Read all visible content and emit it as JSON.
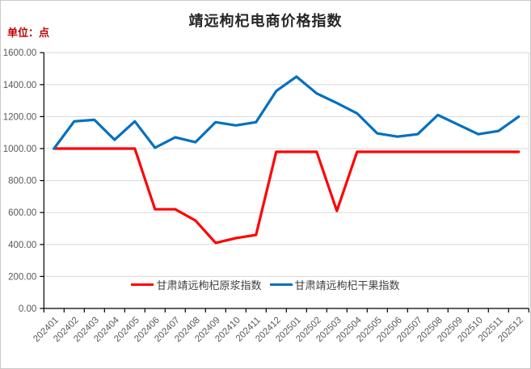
{
  "chart": {
    "unit_label": "单位：点",
    "colors": {
      "unit_label_text": "#c00000",
      "title_text": "#262626",
      "axis_text": "#595959",
      "legend_text": "#404040",
      "gridline": "#d9d9d9",
      "axis_line": "#000000",
      "raw_pulp_line": "#ff0000",
      "dried_fruit_line": "#0070c0"
    }
  },
  "chart_data": {
    "type": "line",
    "title": "靖远枸杞电商价格指数",
    "xlabel": "",
    "ylabel": "单位：点",
    "ylim": [
      0,
      1600
    ],
    "ytick_step": 200,
    "ytick_labels": [
      "0.00",
      "200.00",
      "400.00",
      "600.00",
      "800.00",
      "1000.00",
      "1200.00",
      "1400.00",
      "1600.00"
    ],
    "grid": true,
    "legend_position": "bottom-center",
    "categories": [
      "202401",
      "202402",
      "202403",
      "202404",
      "202405",
      "202406",
      "202407",
      "202408",
      "202409",
      "202410",
      "202411",
      "202412",
      "202501",
      "202502",
      "202503",
      "202504",
      "202505",
      "202506",
      "202507",
      "202508",
      "202509",
      "202510",
      "202511",
      "202512"
    ],
    "series": [
      {
        "name": "甘肃靖远枸杞原浆指数",
        "color": "#ff0000",
        "values": [
          1000,
          1000,
          1000,
          1000,
          1000,
          620,
          620,
          550,
          410,
          440,
          460,
          980,
          980,
          980,
          610,
          980,
          980,
          980,
          980,
          980,
          980,
          980,
          980,
          980
        ]
      },
      {
        "name": "甘肃靖远枸杞干果指数",
        "color": "#0070c0",
        "values": [
          1000,
          1170,
          1180,
          1055,
          1170,
          1005,
          1070,
          1040,
          1165,
          1145,
          1165,
          1360,
          1450,
          1345,
          1285,
          1220,
          1095,
          1075,
          1090,
          1210,
          1150,
          1090,
          1110,
          1200
        ]
      }
    ]
  }
}
